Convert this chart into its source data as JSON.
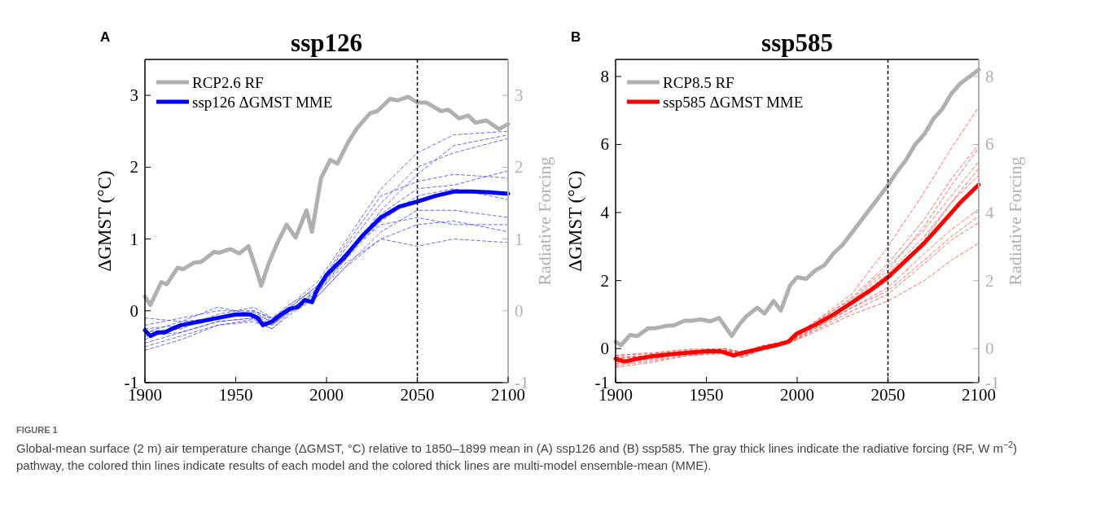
{
  "chart_data": [
    {
      "type": "line",
      "title": "ssp126",
      "ylabel": "ΔGMST (°C)",
      "y2label": "Radiative Forcing",
      "annotations": [
        "A",
        "FIGURE 1",
        "Global-mean surface (2 m) air temperature change (ΔGMST, °C) relative to 1850–1899 mean in (A) ssp126 and (B) ssp585. The gray thick lines indicate the radiative forcing (RF, W m$^{−2}$) pathway, the colored thin lines indicate results of each model and the colored thick lines are multi-model ensemble-mean (MME)."
      ],
      "xlim": [
        1900,
        2100
      ],
      "xticks": [
        1900,
        1950,
        2000,
        2050,
        2100
      ],
      "ylim": [
        -1,
        3.5
      ],
      "yticks": [
        -1,
        0,
        1,
        2,
        3
      ],
      "y2lim": [
        -1,
        3.5
      ],
      "y2ticks": [
        -1,
        0,
        1,
        2,
        3
      ],
      "legend": "top left",
      "ref_lines": [
        {
          "axis": "x",
          "value": 2050,
          "color": "#000000",
          "line_style": "dashed"
        }
      ],
      "series": [
        {
          "name": "RCP2.6 RF",
          "color": "#b0b0b0",
          "axis": "y2",
          "line_style": "solid",
          "x": [
            1900,
            1903,
            1909,
            1912,
            1918,
            1921,
            1927,
            1931,
            1938,
            1941,
            1947,
            1952,
            1957,
            1961,
            1964,
            1968,
            1973,
            1978,
            1983,
            1989,
            1992,
            1997,
            2002,
            2006,
            2012,
            2017,
            2024,
            2028,
            2035,
            2039,
            2045,
            2050,
            2055,
            2063,
            2067,
            2073,
            2078,
            2082,
            2088,
            2095,
            2100
          ],
          "values": [
            0.2,
            0.08,
            0.4,
            0.37,
            0.6,
            0.58,
            0.67,
            0.68,
            0.82,
            0.81,
            0.86,
            0.8,
            0.9,
            0.6,
            0.35,
            0.65,
            0.95,
            1.2,
            1.02,
            1.4,
            1.1,
            1.85,
            2.1,
            2.05,
            2.35,
            2.55,
            2.75,
            2.78,
            2.95,
            2.93,
            2.98,
            2.9,
            2.9,
            2.78,
            2.8,
            2.68,
            2.72,
            2.62,
            2.65,
            2.53,
            2.6
          ]
        },
        {
          "name": "ssp126 ΔGMST MME",
          "color": "#0000ff",
          "line_style": "solid",
          "x": [
            1900,
            1903,
            1907,
            1911,
            1915,
            1920,
            1930,
            1940,
            1950,
            1958,
            1962,
            1965,
            1970,
            1975,
            1980,
            1984,
            1988,
            1992,
            1995,
            2000,
            2010,
            2020,
            2030,
            2040,
            2050,
            2060,
            2070,
            2080,
            2090,
            2100
          ],
          "values": [
            -0.27,
            -0.35,
            -0.3,
            -0.3,
            -0.25,
            -0.2,
            -0.15,
            -0.1,
            -0.05,
            -0.05,
            -0.1,
            -0.2,
            -0.15,
            -0.05,
            0.03,
            0.05,
            0.15,
            0.12,
            0.3,
            0.5,
            0.75,
            1.05,
            1.3,
            1.45,
            1.52,
            1.6,
            1.66,
            1.66,
            1.65,
            1.63
          ]
        },
        {
          "color": "#4040ff",
          "line_style": "dashed",
          "x": [
            1900,
            1920,
            1940,
            1960,
            1970,
            1980,
            1995,
            2010,
            2030,
            2050,
            2070,
            2100
          ],
          "values": [
            -0.45,
            -0.3,
            -0.15,
            -0.1,
            -0.2,
            0.0,
            0.25,
            0.7,
            1.4,
            1.9,
            2.3,
            2.45
          ]
        },
        {
          "color": "#4040ff",
          "line_style": "dashed",
          "x": [
            1900,
            1920,
            1940,
            1960,
            1970,
            1980,
            1995,
            2010,
            2030,
            2050,
            2070,
            2100
          ],
          "values": [
            -0.2,
            -0.1,
            0.0,
            0.0,
            -0.1,
            0.05,
            0.35,
            0.85,
            1.5,
            2.0,
            2.2,
            2.4
          ]
        },
        {
          "color": "#4040ff",
          "line_style": "dashed",
          "x": [
            1900,
            1920,
            1940,
            1960,
            1970,
            1980,
            1995,
            2010,
            2030,
            2050,
            2070,
            2100
          ],
          "values": [
            -0.5,
            -0.35,
            -0.2,
            -0.15,
            -0.25,
            -0.05,
            0.2,
            0.6,
            1.0,
            1.2,
            1.25,
            1.1
          ]
        },
        {
          "color": "#4040ff",
          "line_style": "dashed",
          "x": [
            1900,
            1920,
            1940,
            1960,
            1970,
            1980,
            1995,
            2010,
            2030,
            2050,
            2070,
            2100
          ],
          "values": [
            -0.3,
            -0.25,
            -0.05,
            0.05,
            -0.1,
            0.1,
            0.3,
            0.8,
            1.2,
            1.3,
            1.2,
            1.2
          ]
        },
        {
          "color": "#4040ff",
          "line_style": "dashed",
          "x": [
            1900,
            1920,
            1940,
            1960,
            1970,
            1980,
            1995,
            2010,
            2030,
            2050,
            2070,
            2100
          ],
          "values": [
            -0.4,
            -0.2,
            -0.1,
            -0.05,
            -0.2,
            0.0,
            0.25,
            0.65,
            1.0,
            0.9,
            1.0,
            0.95
          ]
        },
        {
          "color": "#4040ff",
          "line_style": "dashed",
          "x": [
            1900,
            1920,
            1940,
            1960,
            1970,
            1980,
            1995,
            2010,
            2030,
            2050,
            2070,
            2100
          ],
          "values": [
            -0.1,
            -0.15,
            -0.1,
            -0.02,
            -0.15,
            0.05,
            0.35,
            0.9,
            1.6,
            1.8,
            1.9,
            1.85
          ]
        },
        {
          "color": "#4040ff",
          "line_style": "dashed",
          "x": [
            1900,
            1920,
            1940,
            1960,
            1970,
            1980,
            1995,
            2010,
            2030,
            2050,
            2070,
            2100
          ],
          "values": [
            -0.35,
            -0.3,
            -0.15,
            -0.1,
            -0.2,
            0.0,
            0.3,
            0.7,
            1.25,
            1.6,
            1.7,
            1.55
          ]
        },
        {
          "color": "#4040ff",
          "line_style": "dashed",
          "x": [
            1900,
            1920,
            1940,
            1960,
            1970,
            1980,
            1995,
            2010,
            2030,
            2050,
            2070,
            2100
          ],
          "values": [
            -0.25,
            -0.2,
            -0.08,
            0.0,
            -0.12,
            0.08,
            0.4,
            0.95,
            1.7,
            2.2,
            2.45,
            2.5
          ]
        },
        {
          "color": "#4040ff",
          "line_style": "dashed",
          "x": [
            1900,
            1920,
            1940,
            1960,
            1970,
            1980,
            1995,
            2010,
            2030,
            2050,
            2070,
            2100
          ],
          "values": [
            -0.55,
            -0.4,
            -0.2,
            -0.12,
            -0.25,
            -0.02,
            0.2,
            0.6,
            1.1,
            1.4,
            1.4,
            1.3
          ]
        },
        {
          "color": "#4040ff",
          "line_style": "dashed",
          "x": [
            1900,
            1920,
            1940,
            1960,
            1970,
            1980,
            1995,
            2010,
            2030,
            2050,
            2070,
            2100
          ],
          "values": [
            -0.3,
            -0.15,
            0.05,
            -0.05,
            -0.15,
            0.02,
            0.28,
            0.75,
            1.35,
            1.7,
            1.75,
            1.95
          ]
        }
      ]
    },
    {
      "type": "line",
      "title": "ssp585",
      "ylabel": "ΔGMST (°C)",
      "y2label": "Radiative Forcing",
      "annotations": [
        "B"
      ],
      "xlim": [
        1900,
        2100
      ],
      "xticks": [
        1900,
        1950,
        2000,
        2050,
        2100
      ],
      "ylim": [
        -1,
        8.5
      ],
      "yticks": [
        -1,
        0,
        2,
        4,
        6,
        8
      ],
      "y2lim": [
        -1,
        8.5
      ],
      "y2ticks": [
        -1,
        0,
        2,
        4,
        6,
        8
      ],
      "legend": "top left",
      "ref_lines": [
        {
          "axis": "x",
          "value": 2050,
          "color": "#000000",
          "line_style": "dashed"
        }
      ],
      "series": [
        {
          "name": "RCP8.5 RF",
          "color": "#b0b0b0",
          "axis": "y2",
          "line_style": "solid",
          "x": [
            1900,
            1903,
            1908,
            1912,
            1918,
            1922,
            1928,
            1932,
            1938,
            1942,
            1947,
            1952,
            1957,
            1961,
            1964,
            1968,
            1972,
            1978,
            1982,
            1987,
            1991,
            1996,
            2000,
            2005,
            2010,
            2015,
            2020,
            2025,
            2030,
            2035,
            2040,
            2045,
            2050,
            2055,
            2060,
            2065,
            2070,
            2075,
            2080,
            2085,
            2090,
            2095,
            2100
          ],
          "values": [
            0.2,
            0.1,
            0.4,
            0.37,
            0.6,
            0.6,
            0.67,
            0.68,
            0.82,
            0.82,
            0.86,
            0.8,
            0.9,
            0.6,
            0.37,
            0.7,
            0.95,
            1.2,
            1.03,
            1.4,
            1.12,
            1.85,
            2.1,
            2.05,
            2.3,
            2.45,
            2.8,
            3.05,
            3.4,
            3.75,
            4.1,
            4.45,
            4.8,
            5.2,
            5.55,
            6.0,
            6.3,
            6.75,
            7.05,
            7.5,
            7.8,
            8.0,
            8.2
          ]
        },
        {
          "name": "ssp585 ΔGMST MME",
          "color": "#ff0000",
          "line_style": "solid",
          "x": [
            1900,
            1905,
            1910,
            1920,
            1930,
            1940,
            1950,
            1958,
            1965,
            1970,
            1980,
            1990,
            1995,
            2000,
            2010,
            2020,
            2030,
            2040,
            2050,
            2060,
            2070,
            2080,
            2090,
            2100
          ],
          "values": [
            -0.3,
            -0.38,
            -0.32,
            -0.22,
            -0.17,
            -0.12,
            -0.08,
            -0.08,
            -0.2,
            -0.12,
            0.0,
            0.12,
            0.2,
            0.45,
            0.7,
            1.0,
            1.35,
            1.7,
            2.1,
            2.6,
            3.1,
            3.7,
            4.3,
            4.82
          ]
        },
        {
          "color": "#ff4040",
          "line_style": "dashed",
          "x": [
            1900,
            1920,
            1940,
            1960,
            1970,
            1980,
            1995,
            2010,
            2030,
            2050,
            2070,
            2085,
            2100
          ],
          "values": [
            -0.45,
            -0.3,
            -0.15,
            -0.1,
            -0.2,
            0.0,
            0.2,
            0.65,
            1.3,
            2.0,
            3.2,
            4.3,
            5.3
          ]
        },
        {
          "color": "#ff4040",
          "line_style": "dashed",
          "x": [
            1900,
            1920,
            1940,
            1960,
            1970,
            1980,
            1995,
            2010,
            2030,
            2050,
            2070,
            2085,
            2100
          ],
          "values": [
            -0.2,
            -0.15,
            -0.05,
            -0.05,
            -0.1,
            0.05,
            0.25,
            0.8,
            1.6,
            3.0,
            4.6,
            5.9,
            7.1
          ]
        },
        {
          "color": "#ff4040",
          "line_style": "dashed",
          "x": [
            1900,
            1920,
            1940,
            1960,
            1970,
            1980,
            1995,
            2010,
            2030,
            2050,
            2070,
            2085,
            2100
          ],
          "values": [
            -0.5,
            -0.35,
            -0.2,
            -0.15,
            -0.25,
            -0.05,
            0.15,
            0.5,
            1.0,
            1.4,
            2.0,
            2.6,
            3.1
          ]
        },
        {
          "color": "#ff4040",
          "line_style": "dashed",
          "x": [
            1900,
            1920,
            1940,
            1960,
            1970,
            1980,
            1995,
            2010,
            2030,
            2050,
            2070,
            2085,
            2100
          ],
          "values": [
            -0.3,
            -0.2,
            -0.1,
            -0.05,
            -0.15,
            0.05,
            0.2,
            0.7,
            1.4,
            2.3,
            3.6,
            4.8,
            5.9
          ]
        },
        {
          "color": "#ff4040",
          "line_style": "dashed",
          "x": [
            1900,
            1920,
            1940,
            1960,
            1970,
            1980,
            1995,
            2010,
            2030,
            2050,
            2070,
            2085,
            2100
          ],
          "values": [
            -0.4,
            -0.25,
            -0.15,
            -0.1,
            -0.2,
            0.0,
            0.15,
            0.6,
            1.2,
            1.7,
            2.6,
            3.3,
            3.9
          ]
        },
        {
          "color": "#ff4040",
          "line_style": "dashed",
          "x": [
            1900,
            1920,
            1940,
            1960,
            1970,
            1980,
            1995,
            2010,
            2030,
            2050,
            2070,
            2085,
            2100
          ],
          "values": [
            -0.25,
            -0.2,
            -0.08,
            0.0,
            -0.12,
            0.08,
            0.22,
            0.75,
            1.5,
            2.5,
            3.8,
            5.0,
            6.0
          ]
        },
        {
          "color": "#ff4040",
          "line_style": "dashed",
          "x": [
            1900,
            1920,
            1940,
            1960,
            1970,
            1980,
            1995,
            2010,
            2030,
            2050,
            2070,
            2085,
            2100
          ],
          "values": [
            -0.35,
            -0.3,
            -0.12,
            -0.08,
            -0.18,
            0.0,
            0.18,
            0.6,
            1.2,
            1.8,
            2.8,
            3.5,
            4.1
          ]
        },
        {
          "color": "#ff4040",
          "line_style": "dashed",
          "x": [
            1900,
            1920,
            1940,
            1960,
            1970,
            1980,
            1995,
            2010,
            2030,
            2050,
            2070,
            2085,
            2100
          ],
          "values": [
            -0.3,
            -0.2,
            -0.1,
            -0.05,
            -0.15,
            0.02,
            0.2,
            0.7,
            1.35,
            2.2,
            3.3,
            4.3,
            5.1
          ]
        },
        {
          "color": "#ff4040",
          "line_style": "dashed",
          "x": [
            1900,
            1920,
            1940,
            1960,
            1970,
            1980,
            1995,
            2010,
            2030,
            2050,
            2070,
            2085,
            2100
          ],
          "values": [
            -0.55,
            -0.4,
            -0.2,
            -0.12,
            -0.25,
            -0.03,
            0.15,
            0.55,
            1.1,
            1.6,
            2.5,
            3.2,
            3.7
          ]
        },
        {
          "color": "#ff4040",
          "line_style": "dashed",
          "x": [
            1900,
            1920,
            1940,
            1960,
            1970,
            1980,
            1995,
            2010,
            2030,
            2050,
            2070,
            2085,
            2100
          ],
          "values": [
            -0.2,
            -0.12,
            -0.02,
            0.0,
            -0.1,
            0.06,
            0.25,
            0.8,
            1.45,
            2.4,
            3.5,
            4.5,
            5.5
          ]
        }
      ]
    }
  ]
}
